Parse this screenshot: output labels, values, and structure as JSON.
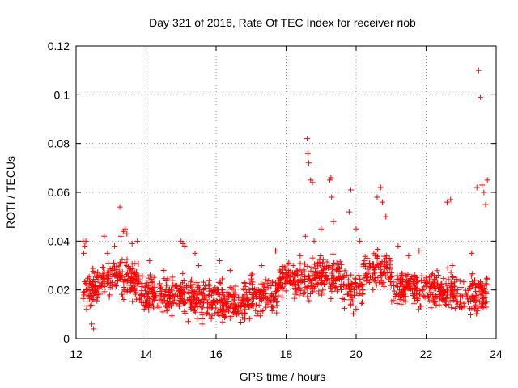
{
  "chart_data": {
    "type": "scatter",
    "title": "Day 321 of 2016, Rate Of TEC Index for receiver riob",
    "xlabel": "GPS time / hours",
    "ylabel": "ROTI / TECUs",
    "xlim": [
      12,
      24
    ],
    "ylim": [
      0,
      0.12
    ],
    "xticks": [
      12,
      14,
      16,
      18,
      20,
      22,
      24
    ],
    "xtick_labels": [
      "12",
      "14",
      "16",
      "18",
      "20",
      "22",
      "24"
    ],
    "yticks": [
      0,
      0.02,
      0.04,
      0.06,
      0.08,
      0.1,
      0.12
    ],
    "ytick_labels": [
      "0",
      "0.02",
      "0.04",
      "0.06",
      "0.08",
      "0.1",
      "0.12"
    ],
    "grid": true,
    "marker": "plus",
    "color": "#ff0000",
    "series": [
      {
        "name": "ROTI",
        "x": [
          12.2,
          12.22,
          12.25,
          12.28,
          12.3,
          12.45,
          12.5,
          12.8,
          12.9,
          13.1,
          13.25,
          13.28,
          13.35,
          13.4,
          13.45,
          13.6,
          13.75,
          14.1,
          14.5,
          15.0,
          15.05,
          15.1,
          15.4,
          15.5,
          15.6,
          16.1,
          16.4,
          16.8,
          17.0,
          17.3,
          17.7,
          17.9,
          18.2,
          18.4,
          18.55,
          18.6,
          18.62,
          18.65,
          18.7,
          18.75,
          18.8,
          19.0,
          19.25,
          19.28,
          19.3,
          19.35,
          19.8,
          19.85,
          20.0,
          20.1,
          20.6,
          20.7,
          20.75,
          20.85,
          21.2,
          21.5,
          21.8,
          22.3,
          22.6,
          22.7,
          22.75,
          22.9,
          23.3,
          23.45,
          23.5,
          23.55,
          23.6,
          23.65,
          23.7,
          23.75
        ],
        "y": [
          0.04,
          0.035,
          0.038,
          0.04,
          0.012,
          0.006,
          0.004,
          0.042,
          0.035,
          0.038,
          0.054,
          0.042,
          0.044,
          0.045,
          0.043,
          0.039,
          0.04,
          0.032,
          0.028,
          0.04,
          0.039,
          0.038,
          0.035,
          0.03,
          0.006,
          0.032,
          0.028,
          0.02,
          0.026,
          0.03,
          0.036,
          0.025,
          0.03,
          0.034,
          0.042,
          0.082,
          0.076,
          0.072,
          0.065,
          0.064,
          0.04,
          0.045,
          0.065,
          0.066,
          0.058,
          0.048,
          0.052,
          0.061,
          0.045,
          0.04,
          0.058,
          0.062,
          0.056,
          0.05,
          0.038,
          0.034,
          0.036,
          0.025,
          0.056,
          0.057,
          0.03,
          0.02,
          0.035,
          0.062,
          0.11,
          0.099,
          0.063,
          0.06,
          0.055,
          0.065
        ]
      }
    ]
  }
}
